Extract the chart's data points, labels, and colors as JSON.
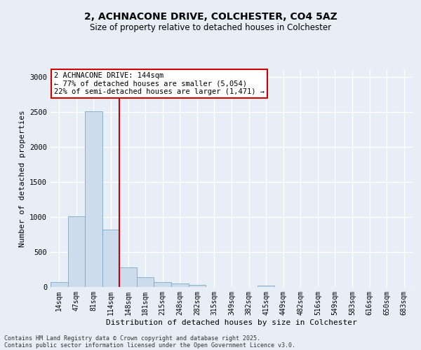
{
  "title_line1": "2, ACHNACONE DRIVE, COLCHESTER, CO4 5AZ",
  "title_line2": "Size of property relative to detached houses in Colchester",
  "xlabel": "Distribution of detached houses by size in Colchester",
  "ylabel": "Number of detached properties",
  "bar_color": "#ccdcec",
  "bar_edge_color": "#7aaac8",
  "categories": [
    "14sqm",
    "47sqm",
    "81sqm",
    "114sqm",
    "148sqm",
    "181sqm",
    "215sqm",
    "248sqm",
    "282sqm",
    "315sqm",
    "349sqm",
    "382sqm",
    "415sqm",
    "449sqm",
    "482sqm",
    "516sqm",
    "549sqm",
    "583sqm",
    "616sqm",
    "650sqm",
    "683sqm"
  ],
  "values": [
    70,
    1010,
    2510,
    820,
    280,
    140,
    75,
    55,
    35,
    0,
    0,
    0,
    25,
    0,
    0,
    0,
    0,
    0,
    0,
    0,
    0
  ],
  "vline_index": 4,
  "vline_color": "#cc0000",
  "annotation_line1": "2 ACHNACONE DRIVE: 144sqm",
  "annotation_line2": "← 77% of detached houses are smaller (5,054)",
  "annotation_line3": "22% of semi-detached houses are larger (1,471) →",
  "annotation_box_color": "#ffffff",
  "annotation_box_edge": "#cc0000",
  "ylim": [
    0,
    3100
  ],
  "yticks": [
    0,
    500,
    1000,
    1500,
    2000,
    2500,
    3000
  ],
  "background_color": "#e8eef5",
  "grid_color": "#ffffff",
  "footer_line1": "Contains HM Land Registry data © Crown copyright and database right 2025.",
  "footer_line2": "Contains public sector information licensed under the Open Government Licence v3.0."
}
